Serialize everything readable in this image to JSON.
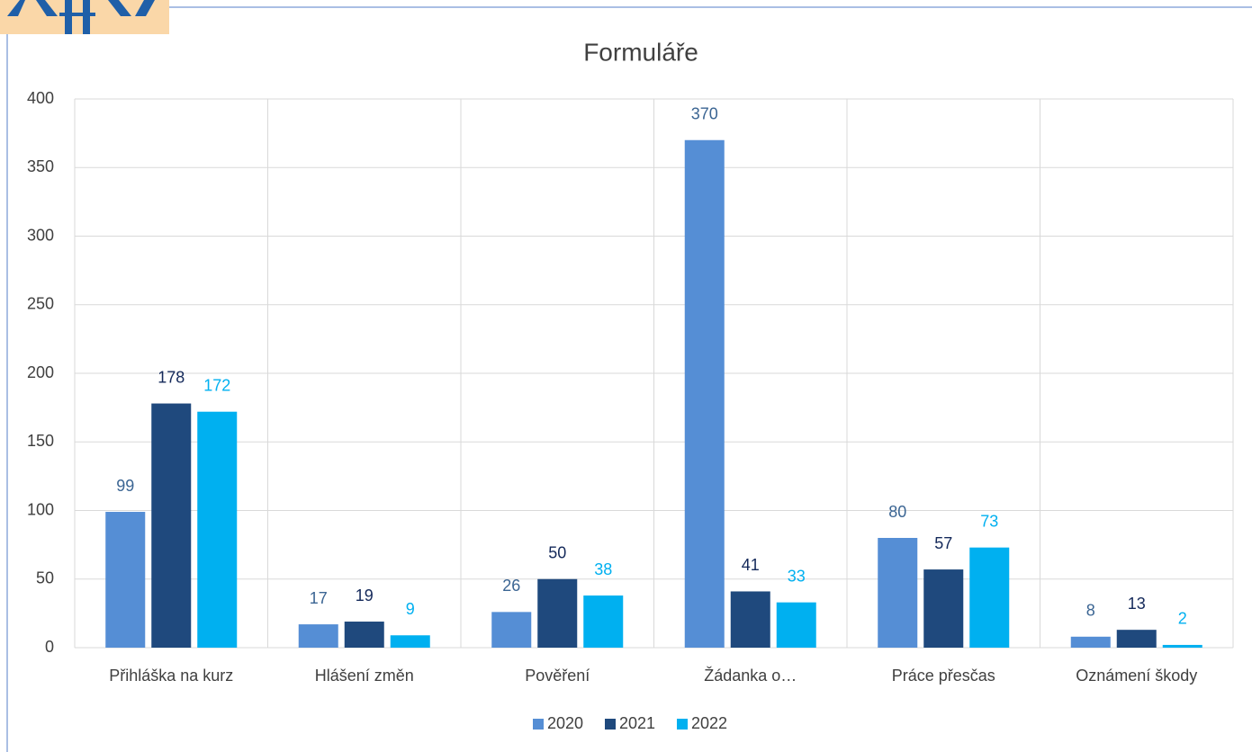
{
  "chart_data": {
    "type": "bar",
    "title": "Formuláře",
    "categories": [
      "Přihláška na kurz",
      "Hlášení změn",
      "Pověření",
      "Žádanka o…",
      "Práce přesčas",
      "Oznámení škody"
    ],
    "series": [
      {
        "name": "2020",
        "color": "#558ed5",
        "label_color": "#3b6593",
        "values": [
          99,
          17,
          26,
          370,
          80,
          8
        ]
      },
      {
        "name": "2021",
        "color": "#1f497d",
        "label_color": "#14295a",
        "values": [
          178,
          19,
          50,
          41,
          57,
          13
        ]
      },
      {
        "name": "2022",
        "color": "#00b0f0",
        "label_color": "#00b0f0",
        "values": [
          172,
          9,
          38,
          33,
          73,
          2
        ]
      }
    ],
    "ylim": [
      0,
      400
    ],
    "yticks": [
      0,
      50,
      100,
      150,
      200,
      250,
      300,
      350,
      400
    ],
    "grid": true,
    "legend": "bottom"
  }
}
